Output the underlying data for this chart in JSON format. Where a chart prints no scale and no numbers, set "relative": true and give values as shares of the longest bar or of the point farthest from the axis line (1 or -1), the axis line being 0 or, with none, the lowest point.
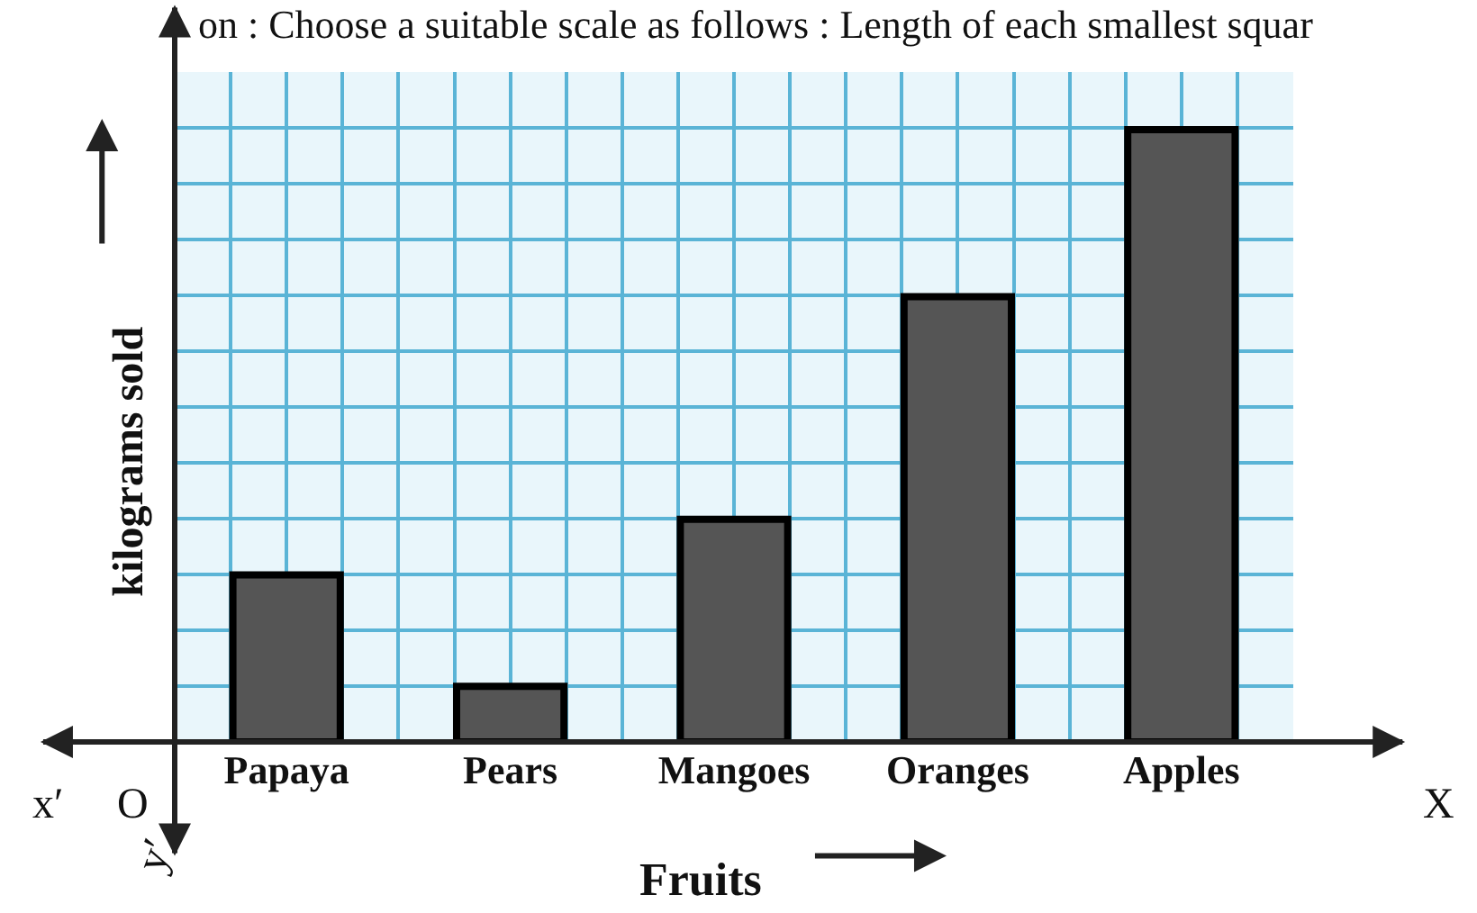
{
  "chart_data": {
    "type": "bar",
    "relative": true,
    "xlabel": "Fruits",
    "ylabel": "kilograms sold",
    "categories": [
      "Papaya",
      "Pears",
      "Mangoes",
      "Oranges",
      "Apples"
    ],
    "values": [
      0.2727,
      0.0909,
      0.3636,
      0.7273,
      1
    ],
    "color": "#555555",
    "grid": true,
    "annotations": [
      "on : Choose a suitable scale as follows : Length of each smallest squar",
      "x′",
      "O",
      "X",
      "y′"
    ]
  }
}
